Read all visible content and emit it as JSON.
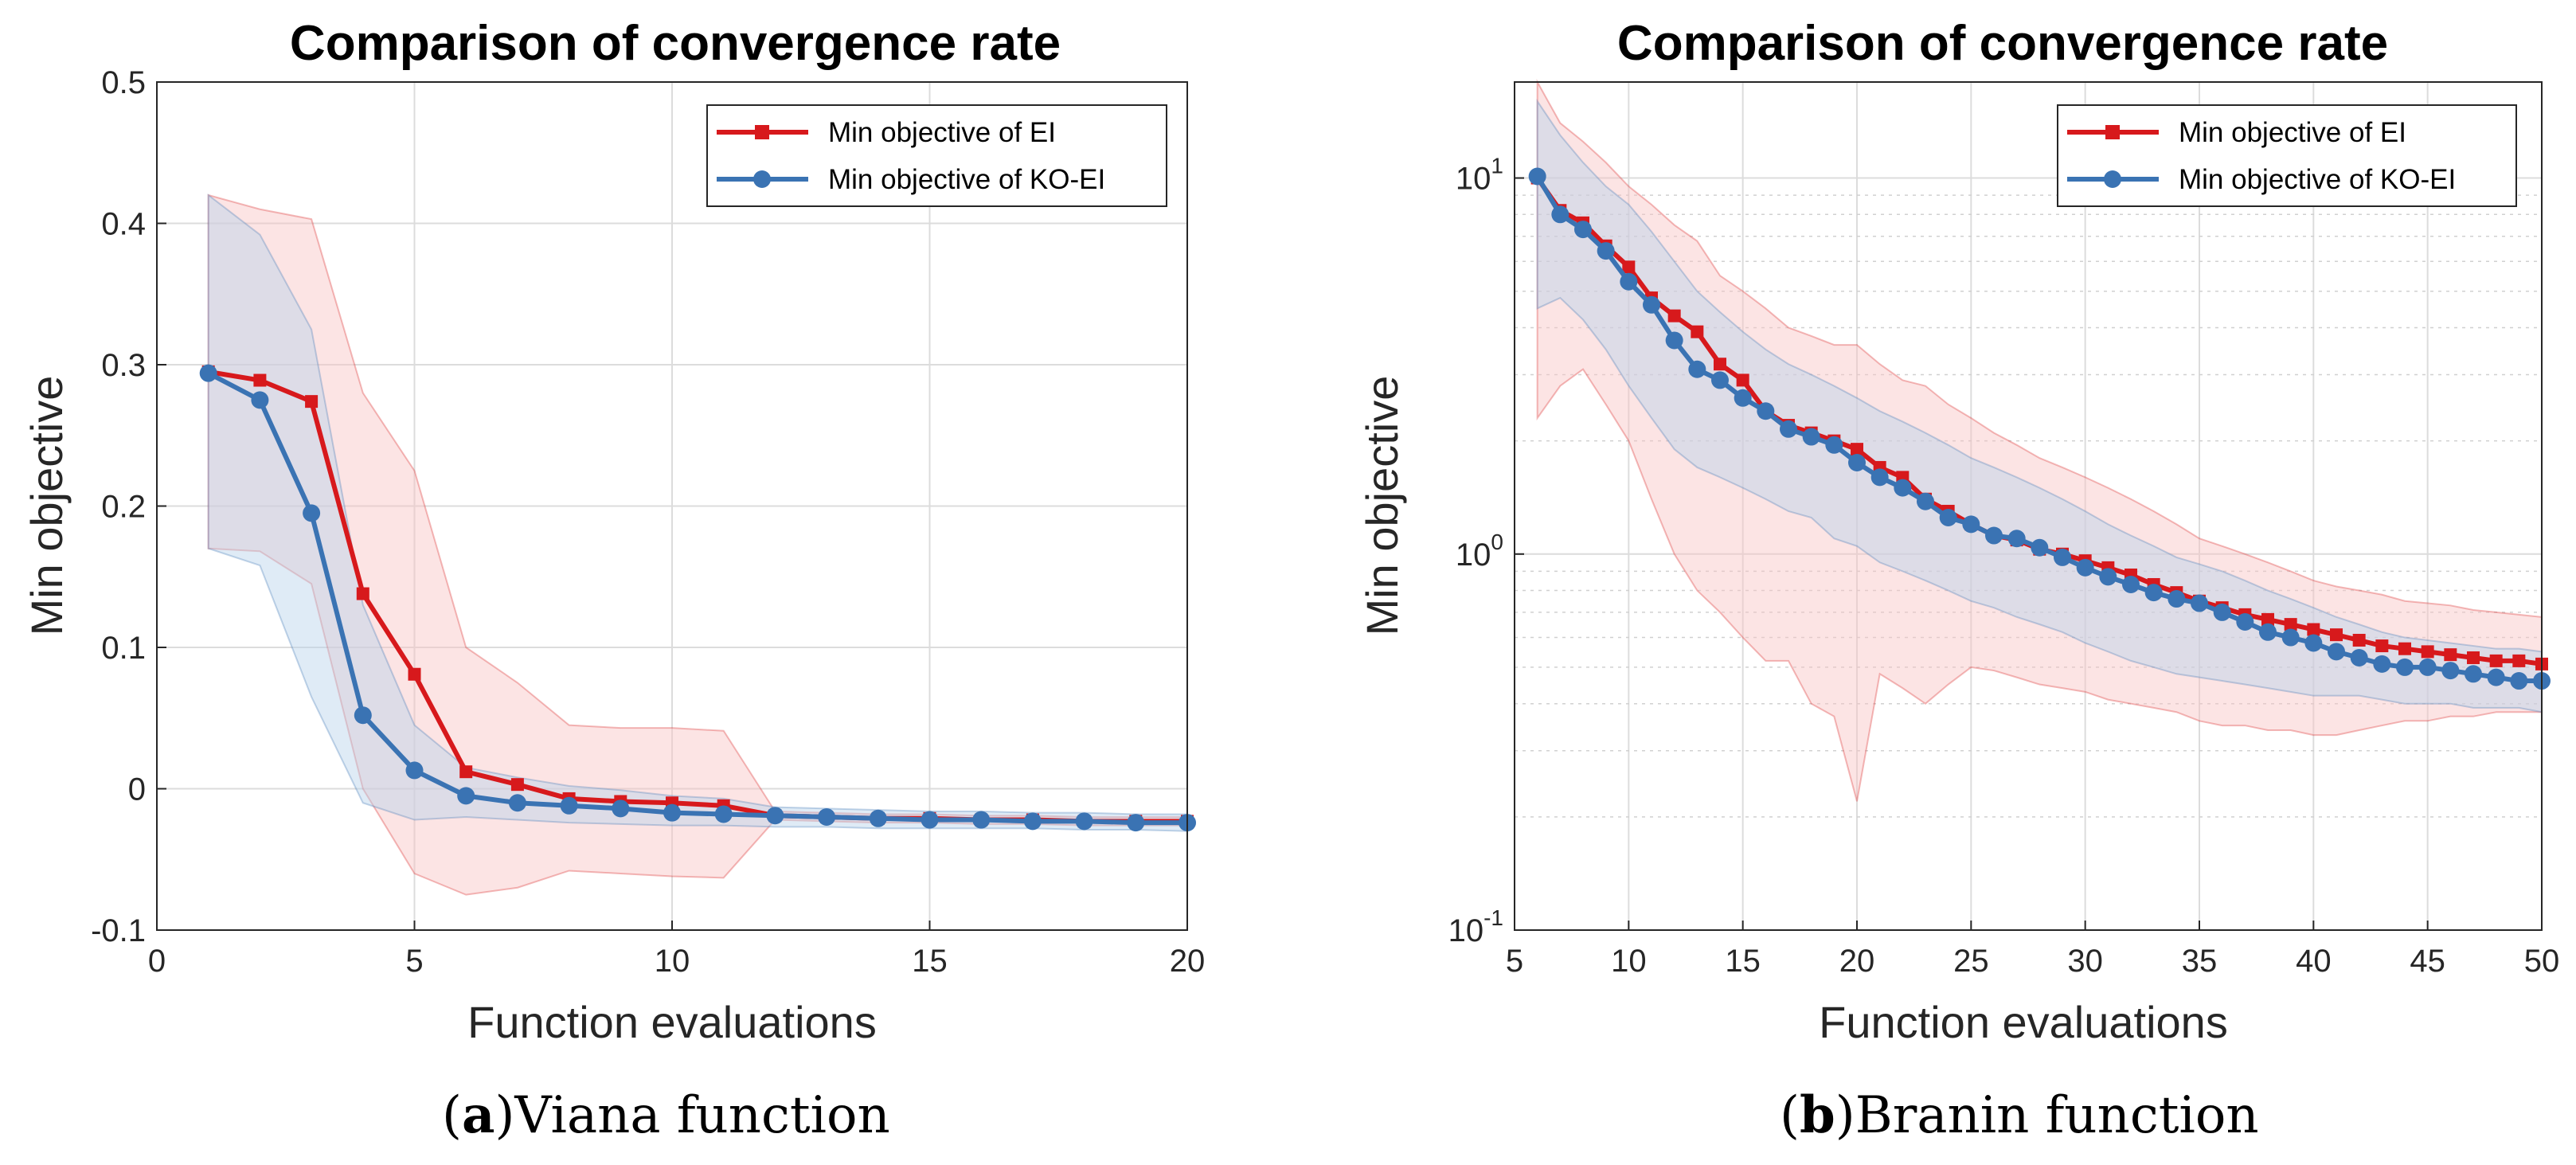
{
  "figure": {
    "captions": [
      {
        "paren_open": "(",
        "letter": "a",
        "paren_close": ")",
        "text": "Viana function"
      },
      {
        "paren_open": "(",
        "letter": "b",
        "paren_close": ")",
        "text": "Branin function"
      }
    ]
  },
  "colors": {
    "ei": "#d7191c",
    "koei": "#3a73b3",
    "ei_band": "#f9c3c3",
    "koei_band": "#b9d3ec"
  },
  "chart_data": [
    {
      "type": "line",
      "title": "Comparison of convergence rate",
      "xlabel": "Function evaluations",
      "ylabel": "Min objective",
      "xlim": [
        0,
        20
      ],
      "ylim": [
        -0.1,
        0.5
      ],
      "yscale": "linear",
      "grid": true,
      "legend_position": "top-right",
      "xticks": [
        "0",
        "5",
        "10",
        "15",
        "20"
      ],
      "yticks": [
        "-0.1",
        "0",
        "0.1",
        "0.2",
        "0.3",
        "0.4",
        "0.5"
      ],
      "series": [
        {
          "name": "Min objective of EI",
          "marker": "square",
          "x": [
            1,
            2,
            3,
            4,
            5,
            6,
            7,
            8,
            9,
            10,
            11,
            12,
            13,
            14,
            15,
            16,
            17,
            18,
            19,
            20
          ],
          "values": [
            0.295,
            0.289,
            0.274,
            0.138,
            0.081,
            0.012,
            0.003,
            -0.007,
            -0.009,
            -0.01,
            -0.012,
            -0.019,
            -0.02,
            -0.021,
            -0.021,
            -0.022,
            -0.022,
            -0.023,
            -0.023,
            -0.023
          ],
          "band_upper": [
            0.42,
            0.41,
            0.403,
            0.28,
            0.225,
            0.1,
            0.075,
            0.045,
            0.043,
            0.043,
            0.041,
            -0.016,
            -0.017,
            -0.018,
            -0.018,
            -0.019,
            -0.019,
            -0.02,
            -0.02,
            -0.02
          ],
          "band_lower": [
            0.17,
            0.168,
            0.145,
            0.0,
            -0.06,
            -0.075,
            -0.07,
            -0.058,
            -0.06,
            -0.062,
            -0.063,
            -0.022,
            -0.023,
            -0.024,
            -0.024,
            -0.025,
            -0.025,
            -0.026,
            -0.026,
            -0.026
          ]
        },
        {
          "name": "Min objective of KO-EI",
          "marker": "circle",
          "x": [
            1,
            2,
            3,
            4,
            5,
            6,
            7,
            8,
            9,
            10,
            11,
            12,
            13,
            14,
            15,
            16,
            17,
            18,
            19,
            20
          ],
          "values": [
            0.294,
            0.275,
            0.195,
            0.052,
            0.013,
            -0.005,
            -0.01,
            -0.012,
            -0.014,
            -0.017,
            -0.018,
            -0.019,
            -0.02,
            -0.021,
            -0.022,
            -0.022,
            -0.023,
            -0.023,
            -0.024,
            -0.024
          ],
          "band_upper": [
            0.42,
            0.392,
            0.325,
            0.13,
            0.045,
            0.015,
            0.008,
            0.002,
            -0.001,
            -0.005,
            -0.007,
            -0.013,
            -0.014,
            -0.015,
            -0.016,
            -0.016,
            -0.017,
            -0.017,
            -0.018,
            -0.018
          ],
          "band_lower": [
            0.17,
            0.158,
            0.065,
            -0.01,
            -0.022,
            -0.02,
            -0.022,
            -0.024,
            -0.025,
            -0.026,
            -0.026,
            -0.027,
            -0.027,
            -0.028,
            -0.028,
            -0.028,
            -0.028,
            -0.029,
            -0.029,
            -0.03
          ]
        }
      ]
    },
    {
      "type": "line",
      "title": "Comparison of convergence rate",
      "xlabel": "Function evaluations",
      "ylabel": "Min objective",
      "xlim": [
        5,
        50
      ],
      "ylim": [
        0.1,
        18
      ],
      "yscale": "log",
      "grid": true,
      "legend_position": "top-right",
      "xticks": [
        "5",
        "10",
        "15",
        "20",
        "25",
        "30",
        "35",
        "40",
        "45",
        "50"
      ],
      "yticks": [
        {
          "base": "10",
          "exp": "-1",
          "value": 0.1
        },
        {
          "base": "10",
          "exp": "0",
          "value": 1
        },
        {
          "base": "10",
          "exp": "1",
          "value": 10
        }
      ],
      "series": [
        {
          "name": "Min objective of EI",
          "marker": "square",
          "x": [
            6,
            7,
            8,
            9,
            10,
            11,
            12,
            13,
            14,
            15,
            16,
            17,
            18,
            19,
            20,
            21,
            22,
            23,
            24,
            25,
            26,
            27,
            28,
            29,
            30,
            31,
            32,
            33,
            34,
            35,
            36,
            37,
            38,
            39,
            40,
            41,
            42,
            43,
            44,
            45,
            46,
            47,
            48,
            49,
            50
          ],
          "values": [
            10.0,
            8.2,
            7.6,
            6.6,
            5.8,
            4.8,
            4.3,
            3.9,
            3.2,
            2.9,
            2.4,
            2.2,
            2.1,
            2.0,
            1.9,
            1.7,
            1.6,
            1.4,
            1.3,
            1.2,
            1.12,
            1.09,
            1.03,
            1.0,
            0.96,
            0.92,
            0.88,
            0.83,
            0.79,
            0.75,
            0.72,
            0.69,
            0.67,
            0.65,
            0.63,
            0.61,
            0.59,
            0.57,
            0.56,
            0.55,
            0.54,
            0.53,
            0.52,
            0.52,
            0.51
          ],
          "band_upper": [
            18.0,
            14.0,
            12.5,
            11.0,
            9.5,
            8.5,
            7.5,
            6.8,
            5.5,
            5.0,
            4.5,
            4.0,
            3.8,
            3.6,
            3.6,
            3.2,
            2.9,
            2.8,
            2.5,
            2.3,
            2.1,
            1.95,
            1.8,
            1.7,
            1.6,
            1.5,
            1.4,
            1.3,
            1.2,
            1.1,
            1.05,
            1.0,
            0.95,
            0.9,
            0.85,
            0.82,
            0.8,
            0.78,
            0.75,
            0.74,
            0.73,
            0.71,
            0.7,
            0.69,
            0.68
          ],
          "band_lower": [
            2.3,
            2.8,
            3.1,
            2.5,
            2.0,
            1.4,
            1.0,
            0.8,
            0.7,
            0.6,
            0.52,
            0.52,
            0.4,
            0.37,
            0.22,
            0.48,
            0.44,
            0.4,
            0.45,
            0.5,
            0.49,
            0.47,
            0.45,
            0.44,
            0.43,
            0.41,
            0.4,
            0.39,
            0.38,
            0.36,
            0.35,
            0.35,
            0.34,
            0.34,
            0.33,
            0.33,
            0.34,
            0.35,
            0.36,
            0.36,
            0.37,
            0.37,
            0.38,
            0.38,
            0.38
          ]
        },
        {
          "name": "Min objective of KO-EI",
          "marker": "circle",
          "x": [
            6,
            7,
            8,
            9,
            10,
            11,
            12,
            13,
            14,
            15,
            16,
            17,
            18,
            19,
            20,
            21,
            22,
            23,
            24,
            25,
            26,
            27,
            28,
            29,
            30,
            31,
            32,
            33,
            34,
            35,
            36,
            37,
            38,
            39,
            40,
            41,
            42,
            43,
            44,
            45,
            46,
            47,
            48,
            49,
            50
          ],
          "values": [
            10.1,
            8.0,
            7.3,
            6.4,
            5.3,
            4.6,
            3.7,
            3.1,
            2.9,
            2.6,
            2.4,
            2.15,
            2.05,
            1.95,
            1.75,
            1.6,
            1.5,
            1.38,
            1.25,
            1.2,
            1.12,
            1.1,
            1.04,
            0.98,
            0.92,
            0.87,
            0.83,
            0.79,
            0.76,
            0.74,
            0.7,
            0.66,
            0.62,
            0.6,
            0.58,
            0.55,
            0.53,
            0.51,
            0.5,
            0.5,
            0.49,
            0.48,
            0.47,
            0.46,
            0.46
          ],
          "band_upper": [
            16.0,
            13.0,
            11.0,
            9.5,
            8.5,
            7.2,
            6.0,
            5.0,
            4.4,
            3.9,
            3.5,
            3.2,
            3.0,
            2.8,
            2.6,
            2.4,
            2.25,
            2.1,
            1.95,
            1.8,
            1.7,
            1.6,
            1.5,
            1.4,
            1.3,
            1.2,
            1.12,
            1.05,
            0.98,
            0.94,
            0.9,
            0.85,
            0.8,
            0.76,
            0.72,
            0.68,
            0.65,
            0.62,
            0.6,
            0.59,
            0.58,
            0.57,
            0.56,
            0.56,
            0.55
          ],
          "band_lower": [
            4.5,
            4.8,
            4.2,
            3.5,
            2.8,
            2.3,
            1.9,
            1.7,
            1.6,
            1.5,
            1.4,
            1.3,
            1.25,
            1.1,
            1.05,
            0.95,
            0.9,
            0.85,
            0.8,
            0.75,
            0.72,
            0.68,
            0.65,
            0.62,
            0.58,
            0.55,
            0.52,
            0.5,
            0.48,
            0.47,
            0.46,
            0.45,
            0.44,
            0.43,
            0.42,
            0.42,
            0.42,
            0.41,
            0.4,
            0.4,
            0.4,
            0.39,
            0.39,
            0.39,
            0.38
          ]
        }
      ]
    }
  ]
}
